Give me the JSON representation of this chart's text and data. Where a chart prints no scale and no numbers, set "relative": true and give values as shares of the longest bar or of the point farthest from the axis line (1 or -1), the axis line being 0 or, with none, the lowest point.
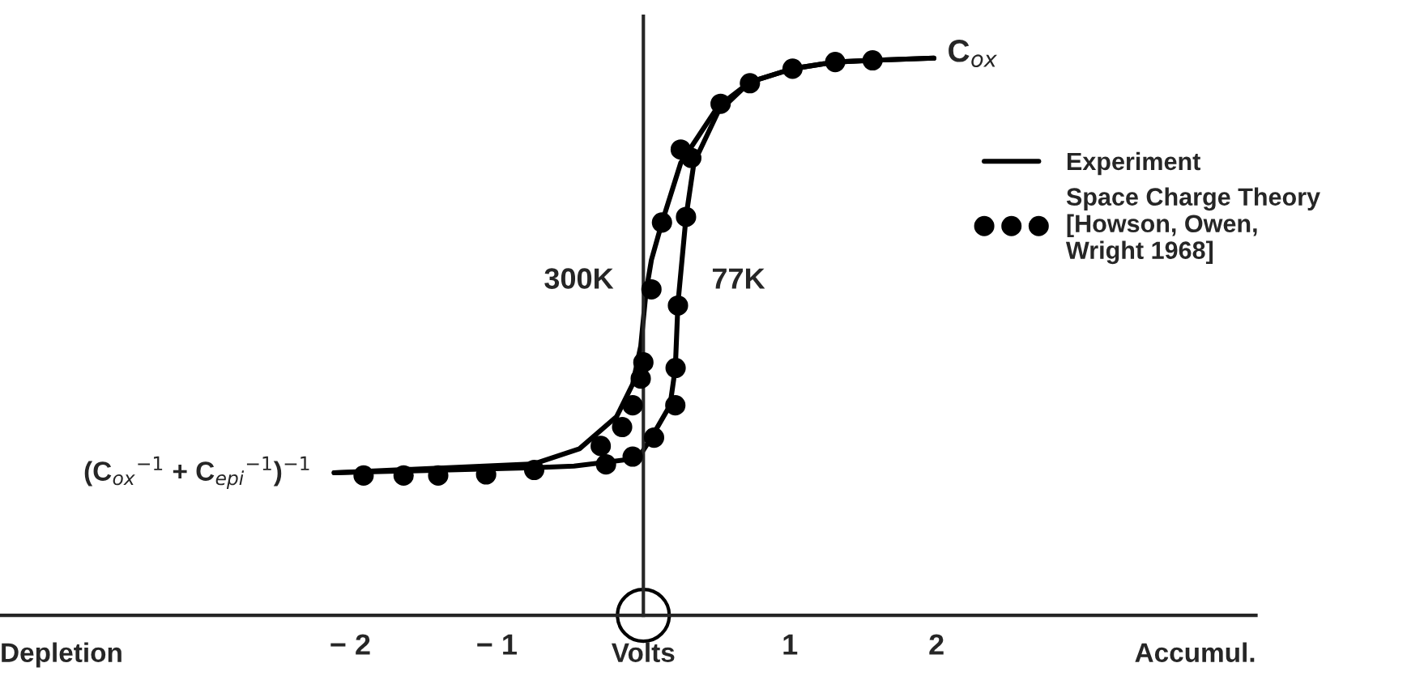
{
  "chart_data": {
    "type": "line",
    "relative": true,
    "xlabel": "Volts",
    "xlim": [
      -4.39,
      4.18
    ],
    "xticks": [
      {
        "value": -2,
        "label": "− 2"
      },
      {
        "value": -1,
        "label": "− 1"
      },
      {
        "value": 0,
        "label": null
      },
      1,
      2
    ],
    "series": [
      {
        "name": "Experiment",
        "color": "#000000",
        "x": [
          -2.11,
          -0.745,
          -0.436,
          -0.182,
          -0.073,
          -0.018,
          0.018,
          0.055,
          0.127,
          0.255,
          0.509,
          0.727,
          1.018,
          1.309,
          1.564,
          1.982
        ],
        "values": [
          0.256,
          0.272,
          0.299,
          0.357,
          0.415,
          0.483,
          0.58,
          0.638,
          0.705,
          0.812,
          0.913,
          0.957,
          0.981,
          0.993,
          0.996,
          1.0
        ]
      },
      {
        "color": "#000000",
        "x": [
          -2.11,
          -0.745,
          -0.473,
          -0.036,
          0.055,
          0.182,
          0.218,
          0.236,
          0.291,
          0.345,
          0.509,
          0.727,
          1.018,
          1.309,
          1.564,
          1.982
        ],
        "values": [
          0.256,
          0.265,
          0.268,
          0.282,
          0.319,
          0.377,
          0.444,
          0.56,
          0.715,
          0.812,
          0.903,
          0.957,
          0.981,
          0.993,
          0.996,
          1.0
        ]
      },
      {
        "name": "Space Charge Theory\n[Howson, Owen,\nWright 1968]",
        "type": "scatter",
        "color": "#000000",
        "marker": "circle",
        "x": [
          -1.909,
          -1.636,
          -1.4,
          -1.073,
          -0.745,
          -0.291,
          -0.145,
          -0.073,
          -0.018,
          0.0,
          0.055,
          0.127,
          0.255,
          0.527,
          0.727,
          1.018,
          1.309,
          1.564,
          -0.255,
          -0.073,
          0.073,
          0.218,
          0.22,
          0.236,
          0.291,
          0.327
        ],
        "values": [
          0.251,
          0.251,
          0.251,
          0.253,
          0.261,
          0.304,
          0.338,
          0.377,
          0.425,
          0.454,
          0.585,
          0.705,
          0.836,
          0.918,
          0.955,
          0.981,
          0.993,
          0.996,
          0.271,
          0.285,
          0.319,
          0.377,
          0.444,
          0.556,
          0.715,
          0.821
        ]
      }
    ],
    "annotations": [
      {
        "text": "C$_{ox}$",
        "x": 1.982,
        "y": 1.0
      },
      {
        "text": "(C$_{ox}$$^{−1}$ + C$_{epi}$$^{−1}$)$^{−1}$",
        "x": -2.11,
        "y": 0.256
      },
      {
        "text": "300K",
        "x": -0.018,
        "y": 0.6
      },
      {
        "text": "77K",
        "x": 0.25,
        "y": 0.6
      },
      "Depletion",
      "Accumul."
    ],
    "legend": "right",
    "line_style": "solid"
  }
}
